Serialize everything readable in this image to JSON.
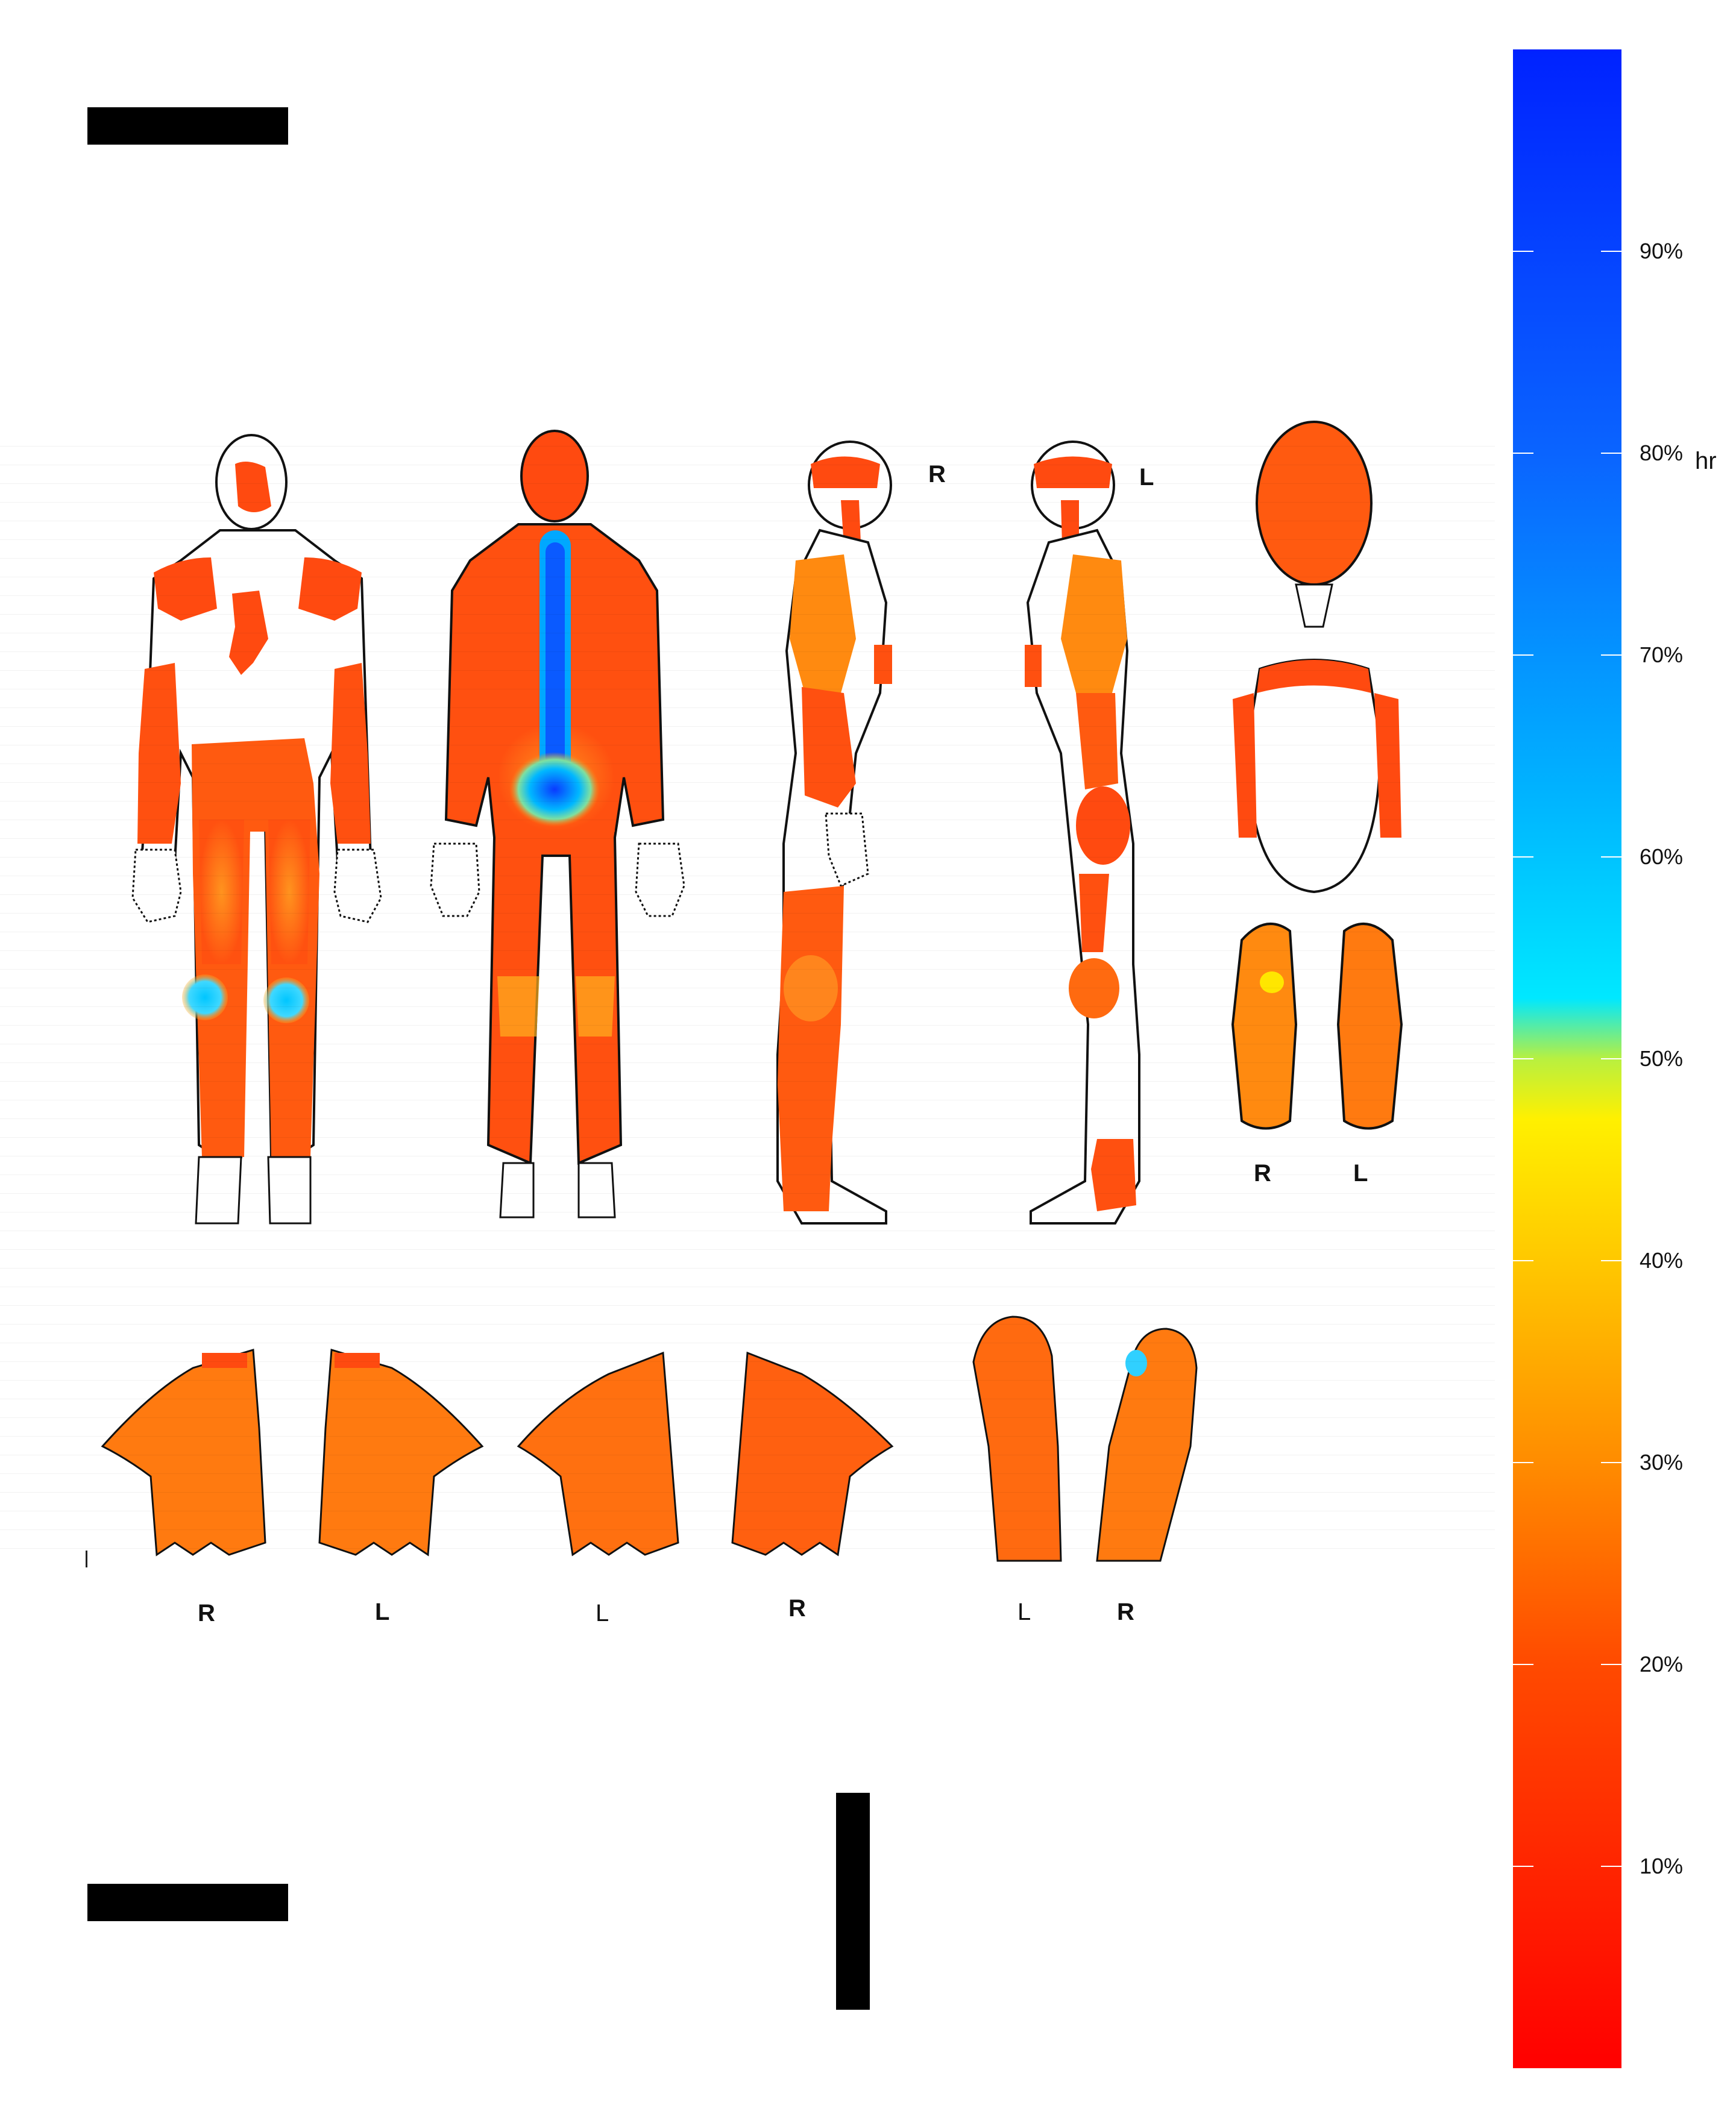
{
  "diagram": {
    "view_labels": {
      "side_right": "R",
      "side_left": "L",
      "soles_right": "R",
      "soles_left": "L",
      "palms_right": "R",
      "palms_left": "L",
      "backs_left": "L",
      "backs_right": "R",
      "feet_top_left": "L",
      "feet_top_right": "R"
    },
    "colors": {
      "low": "#ff1a00",
      "body_base": "#ff4a10",
      "warm": "#ff8a10",
      "mid": "#ffd200",
      "high_cyan": "#00cfff",
      "peak_blue": "#0a3aff",
      "outline": "#111111"
    }
  },
  "colorbar": {
    "unit": "hr",
    "ticks": [
      "90%",
      "80%",
      "70%",
      "60%",
      "50%",
      "40%",
      "30%",
      "20%",
      "10%"
    ],
    "tick_values": [
      90,
      80,
      70,
      60,
      50,
      40,
      30,
      20,
      10
    ],
    "range": [
      0,
      100
    ],
    "gradient_stops": [
      {
        "value": 0,
        "color": "#ff0000"
      },
      {
        "value": 20,
        "color": "#ff4a00"
      },
      {
        "value": 30,
        "color": "#ff8c00"
      },
      {
        "value": 40,
        "color": "#ffc800"
      },
      {
        "value": 47,
        "color": "#fff000"
      },
      {
        "value": 50,
        "color": "#b8f040"
      },
      {
        "value": 53,
        "color": "#00e8ff"
      },
      {
        "value": 63,
        "color": "#00b4ff"
      },
      {
        "value": 80,
        "color": "#0a64ff"
      },
      {
        "value": 100,
        "color": "#0022ff"
      }
    ]
  }
}
